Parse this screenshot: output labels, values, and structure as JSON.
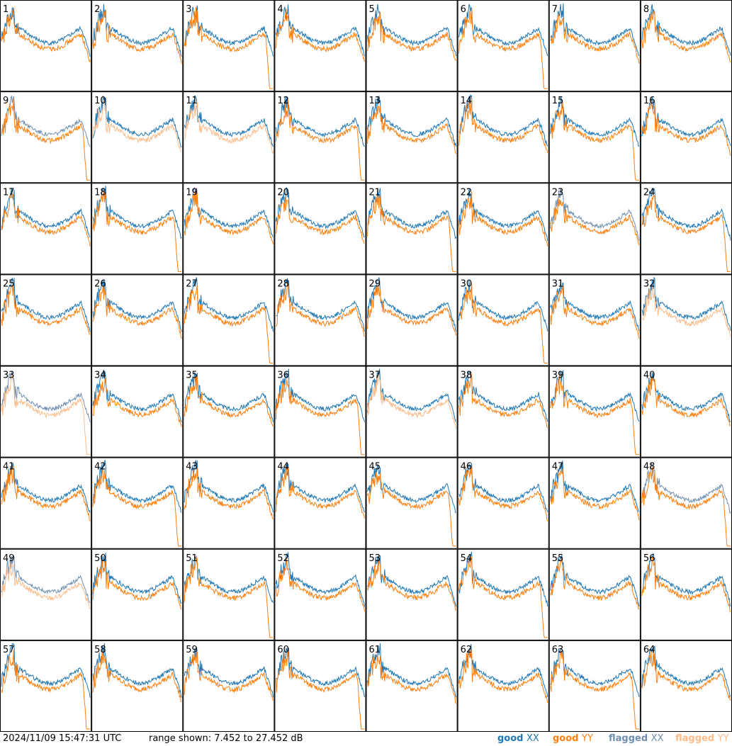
{
  "chart_data": {
    "type": "line",
    "layout": "small-multiples 8x8",
    "panel_labels": [
      "1",
      "2",
      "3",
      "4",
      "5",
      "6",
      "7",
      "8",
      "9",
      "10",
      "11",
      "12",
      "13",
      "14",
      "15",
      "16",
      "17",
      "18",
      "19",
      "20",
      "21",
      "22",
      "23",
      "24",
      "25",
      "26",
      "27",
      "28",
      "29",
      "30",
      "31",
      "32",
      "33",
      "34",
      "35",
      "36",
      "37",
      "38",
      "39",
      "40",
      "41",
      "42",
      "43",
      "44",
      "45",
      "46",
      "47",
      "48",
      "49",
      "50",
      "51",
      "52",
      "53",
      "54",
      "55",
      "56",
      "57",
      "58",
      "59",
      "60",
      "61",
      "62",
      "63",
      "64"
    ],
    "ylim": [
      7.452,
      27.452
    ],
    "yunit": "dB",
    "series_styles": [
      {
        "name": "good XX",
        "color": "#1f77b4"
      },
      {
        "name": "good YY",
        "color": "#ff7f0e"
      },
      {
        "name": "flagged XX",
        "color": "#6f8fb0"
      },
      {
        "name": "flagged YY",
        "color": "#ffbb88"
      }
    ],
    "panel_status": {
      "xx_flagged": [
        9,
        23,
        33,
        48,
        49
      ],
      "yy_flagged": [
        10,
        11,
        32,
        33,
        37,
        49
      ]
    },
    "note_values": "approximate per-panel spectral shapes; values estimated"
  },
  "footer": {
    "timestamp": "2024/11/09 15:47:31 UTC",
    "range_text": "range shown: 7.452 to 27.452 dB",
    "legend": [
      {
        "label_a": "good ",
        "label_b": "XX",
        "color": "#1f77b4"
      },
      {
        "label_a": "good ",
        "label_b": "YY",
        "color": "#ff7f0e"
      },
      {
        "label_a": "flagged ",
        "label_b": "XX",
        "color": "#6f8fb0"
      },
      {
        "label_a": "flagged ",
        "label_b": "YY",
        "color": "#ffbb88"
      }
    ]
  },
  "colors": {
    "good_xx": "#1f77b4",
    "good_yy": "#ff7f0e",
    "flagged_xx": "#6f8fb0",
    "flagged_yy": "#ffbb88"
  }
}
